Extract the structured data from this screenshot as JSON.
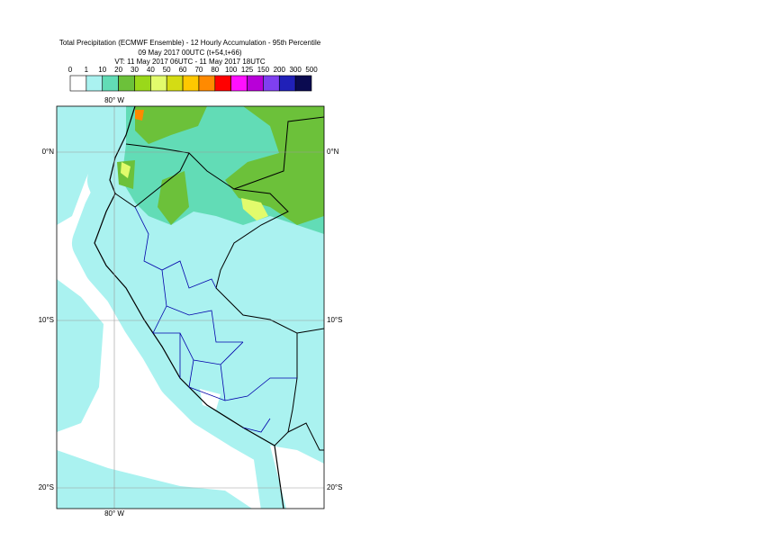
{
  "header": {
    "title": "Total Precipitation (ECMWF Ensemble) - 12 Hourly Accumulation - 95th Percentile",
    "run": "09 May 2017 00UTC (t+54,t+66)",
    "valid": "VT: 11 May 2017 06UTC - 11 May 2017 18UTC"
  },
  "legend": {
    "levels": [
      0,
      1,
      10,
      20,
      30,
      40,
      50,
      60,
      70,
      80,
      100,
      125,
      150,
      200,
      300,
      500
    ],
    "colors": [
      "#ffffff",
      "#aaf2f0",
      "#62dcb6",
      "#6cc13a",
      "#9ad81a",
      "#e2fb6c",
      "#d4dc14",
      "#ffc800",
      "#ff8a00",
      "#ff0000",
      "#ff10ff",
      "#b800d8",
      "#7f40f0",
      "#2020b8",
      "#0a0a50"
    ]
  },
  "map": {
    "meridians": [
      "80° W"
    ],
    "parallels": [
      "0°N",
      "10°S",
      "20°S"
    ]
  }
}
